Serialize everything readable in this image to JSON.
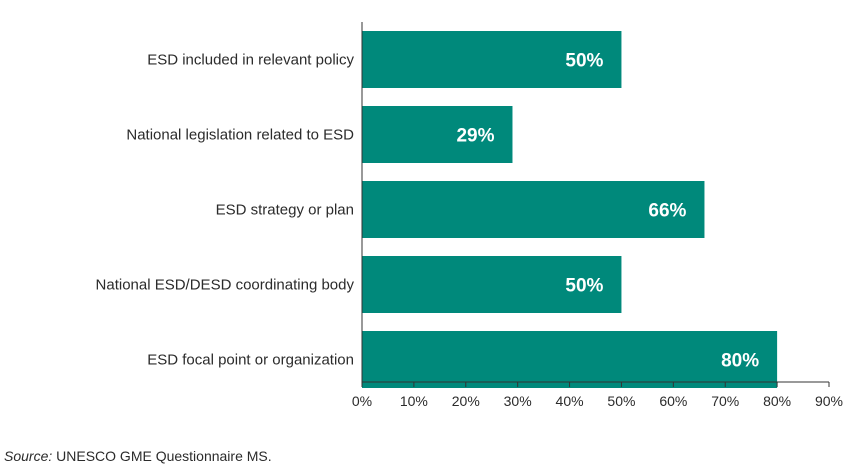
{
  "chart_data": {
    "type": "bar",
    "orientation": "horizontal",
    "categories": [
      "ESD included in relevant policy",
      "National legislation related to ESD",
      "ESD strategy or plan",
      "National ESD/DESD coordinating body",
      "ESD focal point or organization"
    ],
    "values": [
      50,
      29,
      66,
      50,
      80
    ],
    "data_labels": [
      "50%",
      "29%",
      "66%",
      "50%",
      "80%"
    ],
    "xlim": [
      0,
      90
    ],
    "x_ticks": [
      0,
      10,
      20,
      30,
      40,
      50,
      60,
      70,
      80,
      90
    ],
    "x_tick_labels": [
      "0%",
      "10%",
      "20%",
      "30%",
      "40%",
      "50%",
      "60%",
      "70%",
      "80%",
      "90%"
    ],
    "title": "",
    "xlabel": "",
    "ylabel": "",
    "grid": false,
    "legend": "none",
    "bar_color": "#00897b"
  },
  "source": {
    "prefix": "Source:",
    "text": " UNESCO GME Questionnaire MS."
  }
}
